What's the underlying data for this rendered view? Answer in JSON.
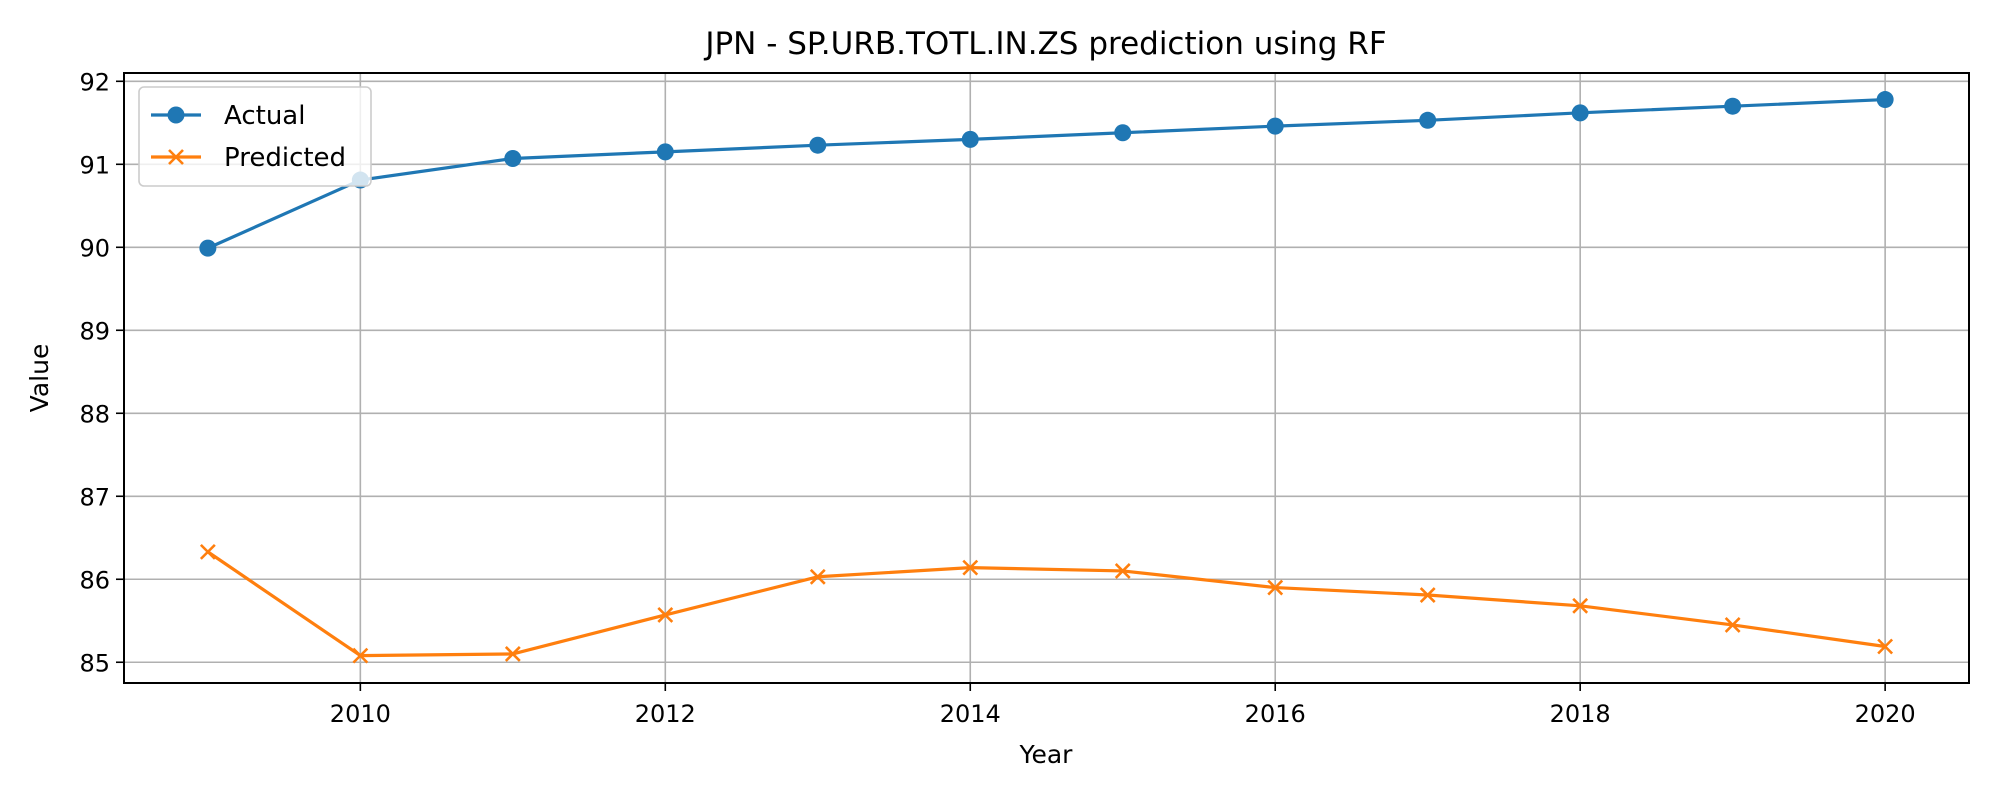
{
  "chart_data": {
    "type": "line",
    "title": "JPN - SP.URB.TOTL.IN.ZS prediction using RF",
    "xlabel": "Year",
    "ylabel": "Value",
    "x": [
      2009,
      2010,
      2011,
      2012,
      2013,
      2014,
      2015,
      2016,
      2017,
      2018,
      2019,
      2020
    ],
    "x_ticks": [
      2010,
      2012,
      2014,
      2016,
      2018,
      2020
    ],
    "y_ticks": [
      85,
      86,
      87,
      88,
      89,
      90,
      91,
      92
    ],
    "xlim": [
      2008.45,
      2020.55
    ],
    "ylim": [
      84.75,
      92.1
    ],
    "grid": true,
    "legend_position": "top-left",
    "series": [
      {
        "name": "Actual",
        "color": "#1f77b4",
        "marker": "circle",
        "values": [
          89.99,
          90.81,
          91.07,
          91.15,
          91.23,
          91.3,
          91.38,
          91.46,
          91.53,
          91.62,
          91.7,
          91.78
        ]
      },
      {
        "name": "Predicted",
        "color": "#ff7f0e",
        "marker": "x",
        "values": [
          86.33,
          85.08,
          85.1,
          85.57,
          86.03,
          86.14,
          86.1,
          85.9,
          85.81,
          85.68,
          85.45,
          85.19
        ]
      }
    ]
  }
}
